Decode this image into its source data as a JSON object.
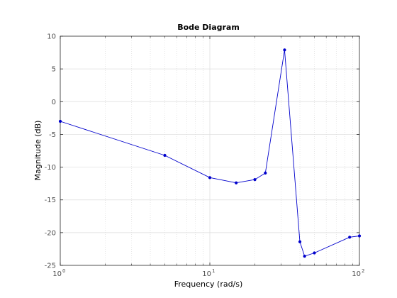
{
  "chart_data": {
    "type": "line",
    "title": "Bode Diagram",
    "xlabel": "Frequency  (rad/s)",
    "ylabel": "Magnitude (dB)",
    "x_scale": "log",
    "xlim": [
      1,
      100
    ],
    "ylim": [
      -25,
      10
    ],
    "grid": true,
    "x_tick_labels": [
      {
        "value": 1,
        "base": "10",
        "exp": "0"
      },
      {
        "value": 10,
        "base": "10",
        "exp": "1"
      },
      {
        "value": 100,
        "base": "10",
        "exp": "2"
      }
    ],
    "y_ticks": [
      10,
      5,
      0,
      -5,
      -10,
      -15,
      -20,
      -25
    ],
    "y_tick_labels": [
      "10",
      "5",
      "0",
      "-5",
      "-10",
      "-15",
      "-20",
      "-25"
    ],
    "series": [
      {
        "color": "#0000cc",
        "x": [
          1,
          5,
          10,
          15,
          20,
          23.5,
          31.6,
          40,
          43,
          50,
          86,
          100
        ],
        "y": [
          -3.0,
          -8.2,
          -11.6,
          -12.4,
          -11.9,
          -10.9,
          7.9,
          -21.4,
          -23.6,
          -23.1,
          -20.7,
          -20.5
        ]
      }
    ]
  }
}
